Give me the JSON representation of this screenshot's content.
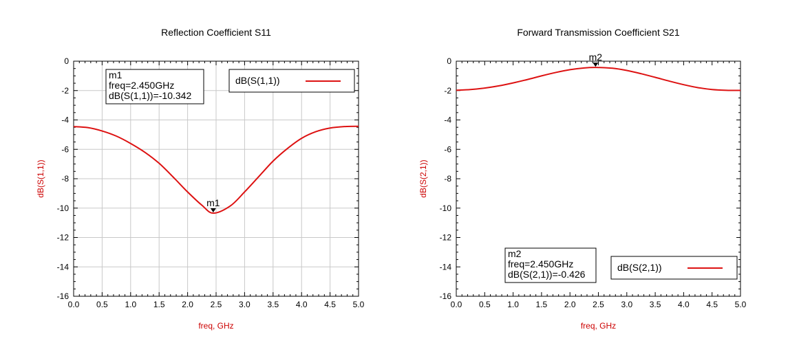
{
  "colors": {
    "trace": "#dd1111",
    "axis_label": "#cc0000",
    "grid": "#c8c8c8"
  },
  "chart_data": [
    {
      "type": "line",
      "title": "Reflection Coefficient S11",
      "xlabel": "freq, GHz",
      "ylabel": "dB(S(1,1))",
      "xlim": [
        0,
        5
      ],
      "ylim": [
        -16,
        0
      ],
      "x_ticks": [
        "0.0",
        "0.5",
        "1.0",
        "1.5",
        "2.0",
        "2.5",
        "3.0",
        "3.5",
        "4.0",
        "4.5",
        "5.0"
      ],
      "y_ticks": [
        "0",
        "-2",
        "-4",
        "-6",
        "-8",
        "-10",
        "-12",
        "-14",
        "-16"
      ],
      "grid": true,
      "legend_position": "top-right",
      "series": [
        {
          "name": "dB(S(1,1))",
          "x": [
            0.0,
            0.25,
            0.5,
            0.75,
            1.0,
            1.25,
            1.5,
            1.75,
            2.0,
            2.25,
            2.45,
            2.75,
            3.0,
            3.25,
            3.5,
            3.75,
            4.0,
            4.25,
            4.5,
            4.75,
            5.0
          ],
          "y": [
            -4.45,
            -4.52,
            -4.75,
            -5.1,
            -5.6,
            -6.2,
            -6.95,
            -7.9,
            -8.9,
            -9.8,
            -10.342,
            -9.85,
            -8.9,
            -7.85,
            -6.8,
            -5.95,
            -5.25,
            -4.8,
            -4.55,
            -4.45,
            -4.43
          ]
        }
      ],
      "marker": {
        "label": "m1",
        "x": 2.45,
        "y": -10.342,
        "lines": [
          "m1",
          "freq=2.450GHz",
          "dB(S(1,1))=-10.342"
        ]
      }
    },
    {
      "type": "line",
      "title": "Forward Transmission Coefficient S21",
      "xlabel": "freq, GHz",
      "ylabel": "dB(S(2,1))",
      "xlim": [
        0,
        5
      ],
      "ylim": [
        -16,
        0
      ],
      "x_ticks": [
        "0.0",
        "0.5",
        "1.0",
        "1.5",
        "2.0",
        "2.5",
        "3.0",
        "3.5",
        "4.0",
        "4.5",
        "5.0"
      ],
      "y_ticks": [
        "0",
        "-2",
        "-4",
        "-6",
        "-8",
        "-10",
        "-12",
        "-14",
        "-16"
      ],
      "grid": false,
      "legend_position": "bottom-right",
      "series": [
        {
          "name": "dB(S(2,1))",
          "x": [
            0.0,
            0.25,
            0.5,
            0.75,
            1.0,
            1.25,
            1.5,
            1.75,
            2.0,
            2.25,
            2.45,
            2.75,
            3.0,
            3.25,
            3.5,
            3.75,
            4.0,
            4.25,
            4.5,
            4.75,
            5.0
          ],
          "y": [
            -1.98,
            -1.93,
            -1.83,
            -1.68,
            -1.48,
            -1.25,
            -1.0,
            -0.77,
            -0.58,
            -0.46,
            -0.426,
            -0.48,
            -0.63,
            -0.85,
            -1.1,
            -1.36,
            -1.6,
            -1.8,
            -1.93,
            -1.98,
            -1.99
          ]
        }
      ],
      "marker": {
        "label": "m2",
        "x": 2.45,
        "y": -0.426,
        "lines": [
          "m2",
          "freq=2.450GHz",
          "dB(S(2,1))=-0.426"
        ]
      }
    }
  ]
}
